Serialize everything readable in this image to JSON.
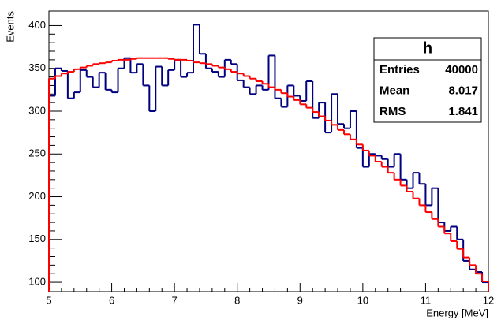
{
  "chart_data": {
    "type": "histogram",
    "xlabel": "Energy [MeV]",
    "ylabel": "Events",
    "bins": [
      5,
      5.1,
      5.2,
      5.3,
      5.4,
      5.5,
      5.6,
      5.7,
      5.8,
      5.9,
      6,
      6.1,
      6.2,
      6.3,
      6.4,
      6.5,
      6.6,
      6.7,
      6.8,
      6.9,
      7,
      7.1,
      7.2,
      7.3,
      7.4,
      7.5,
      7.6,
      7.7,
      7.8,
      7.9,
      8,
      8.1,
      8.2,
      8.3,
      8.4,
      8.5,
      8.6,
      8.7,
      8.8,
      8.9,
      9,
      9.1,
      9.2,
      9.3,
      9.4,
      9.5,
      9.6,
      9.7,
      9.8,
      9.9,
      10,
      10.1,
      10.2,
      10.3,
      10.4,
      10.5,
      10.6,
      10.7,
      10.8,
      10.9,
      11,
      11.1,
      11.2,
      11.3,
      11.4,
      11.5,
      11.6,
      11.7,
      11.8,
      11.9,
      12
    ],
    "series": [
      {
        "color": "#000080",
        "values": [
          318,
          350,
          347,
          315,
          322,
          348,
          340,
          328,
          345,
          325,
          322,
          350,
          362,
          345,
          355,
          330,
          300,
          352,
          330,
          348,
          360,
          340,
          345,
          401,
          367,
          350,
          346,
          340,
          360,
          355,
          336,
          328,
          320,
          330,
          325,
          365,
          315,
          305,
          330,
          318,
          312,
          335,
          292,
          310,
          275,
          320,
          285,
          280,
          300,
          257,
          235,
          250,
          248,
          244,
          235,
          250,
          220,
          210,
          228,
          215,
          190,
          210,
          170,
          160,
          165,
          150,
          125,
          115,
          112,
          100
        ]
      },
      {
        "color": "#ff0000",
        "values": [
          338,
          341,
          344,
          346,
          349,
          351,
          353,
          355,
          356,
          357,
          359,
          360,
          360,
          361,
          362,
          362,
          362,
          362,
          362,
          361,
          360,
          360,
          359,
          357,
          356,
          355,
          353,
          351,
          349,
          346,
          344,
          341,
          338,
          335,
          332,
          328,
          325,
          321,
          317,
          313,
          308,
          304,
          299,
          294,
          289,
          284,
          278,
          273,
          267,
          261,
          254,
          248,
          241,
          235,
          228,
          220,
          213,
          206,
          198,
          190,
          182,
          174,
          165,
          157,
          148,
          139,
          129,
          120,
          110,
          101
        ]
      }
    ],
    "xlim": [
      5,
      12
    ],
    "xticks": [
      5,
      6,
      7,
      8,
      9,
      10,
      11,
      12
    ],
    "ylim": [
      89,
      417
    ],
    "yticks": [
      100,
      150,
      200,
      250,
      300,
      350,
      400
    ],
    "stats": {
      "title": "h",
      "rows": [
        [
          "Entries",
          "40000"
        ],
        [
          "Mean",
          "8.017"
        ],
        [
          "RMS",
          "1.841"
        ]
      ]
    }
  }
}
